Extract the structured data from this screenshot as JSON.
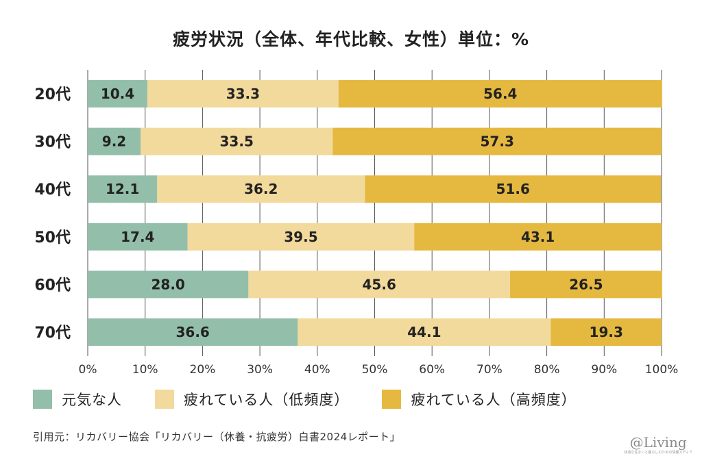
{
  "title": "疲労状況（全体、年代比較、女性）単位：%",
  "chart_data": {
    "type": "bar",
    "orientation": "horizontal",
    "stacked": true,
    "categories": [
      "20代",
      "30代",
      "40代",
      "50代",
      "60代",
      "70代"
    ],
    "series": [
      {
        "name": "元気な人",
        "values": [
          10.4,
          9.2,
          12.1,
          17.4,
          28.0,
          36.6
        ],
        "color": "#93bfaa"
      },
      {
        "name": "疲れている人（低頻度）",
        "values": [
          33.3,
          33.5,
          36.2,
          39.5,
          45.6,
          44.1
        ],
        "color": "#f2d99c"
      },
      {
        "name": "疲れている人（高頻度）",
        "values": [
          56.4,
          57.3,
          51.6,
          43.1,
          26.5,
          19.3
        ],
        "color": "#e5b840"
      }
    ],
    "xlim": [
      0,
      100
    ],
    "xticks": [
      "0%",
      "10%",
      "20%",
      "30%",
      "40%",
      "50%",
      "60%",
      "70%",
      "80%",
      "90%",
      "100%"
    ],
    "grid": true,
    "legend_position": "bottom"
  },
  "source": "引用元：リカバリー協会「リカバリー（休養・抗疲労）白書2024レポート」",
  "brand": {
    "logo": "@Living",
    "tagline": "快適な住まいと暮らしのための情報メディア"
  }
}
